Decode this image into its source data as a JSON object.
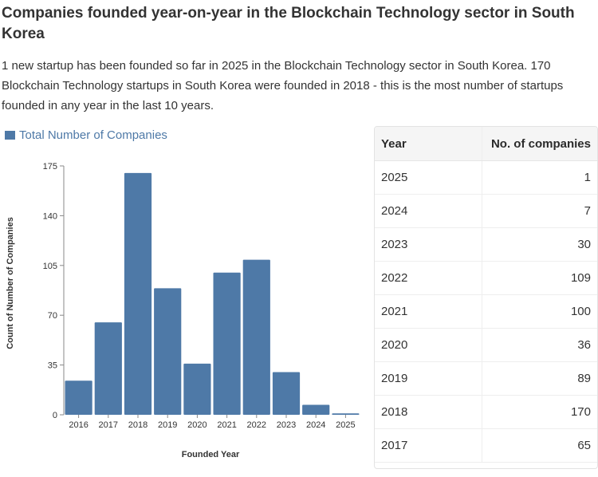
{
  "page": {
    "title": "Companies founded year-on-year in the Blockchain Technology sector in South Korea",
    "description": "1 new startup has been founded so far in 2025 in the Blockchain Technology sector in South Korea. 170 Blockchain Technology startups in South Korea were founded in 2018 - this is the most number of startups founded in any year in the last 10 years."
  },
  "colors": {
    "bar": "#4e79a7",
    "axis": "#888888"
  },
  "chart_data": {
    "type": "bar",
    "title": "",
    "legend": "Total Number of Companies",
    "xlabel": "Founded Year",
    "ylabel": "Count of Number of Companies",
    "categories": [
      "2016",
      "2017",
      "2018",
      "2019",
      "2020",
      "2021",
      "2022",
      "2023",
      "2024",
      "2025"
    ],
    "values": [
      24,
      65,
      170,
      89,
      36,
      100,
      109,
      30,
      7,
      1
    ],
    "yticks": [
      0,
      35,
      70,
      105,
      140,
      175
    ],
    "ylim": [
      0,
      175
    ],
    "grid": false,
    "legend_position": "top-left"
  },
  "table": {
    "headers": [
      "Year",
      "No. of companies"
    ],
    "rows": [
      [
        "2025",
        "1"
      ],
      [
        "2024",
        "7"
      ],
      [
        "2023",
        "30"
      ],
      [
        "2022",
        "109"
      ],
      [
        "2021",
        "100"
      ],
      [
        "2020",
        "36"
      ],
      [
        "2019",
        "89"
      ],
      [
        "2018",
        "170"
      ],
      [
        "2017",
        "65"
      ]
    ]
  }
}
